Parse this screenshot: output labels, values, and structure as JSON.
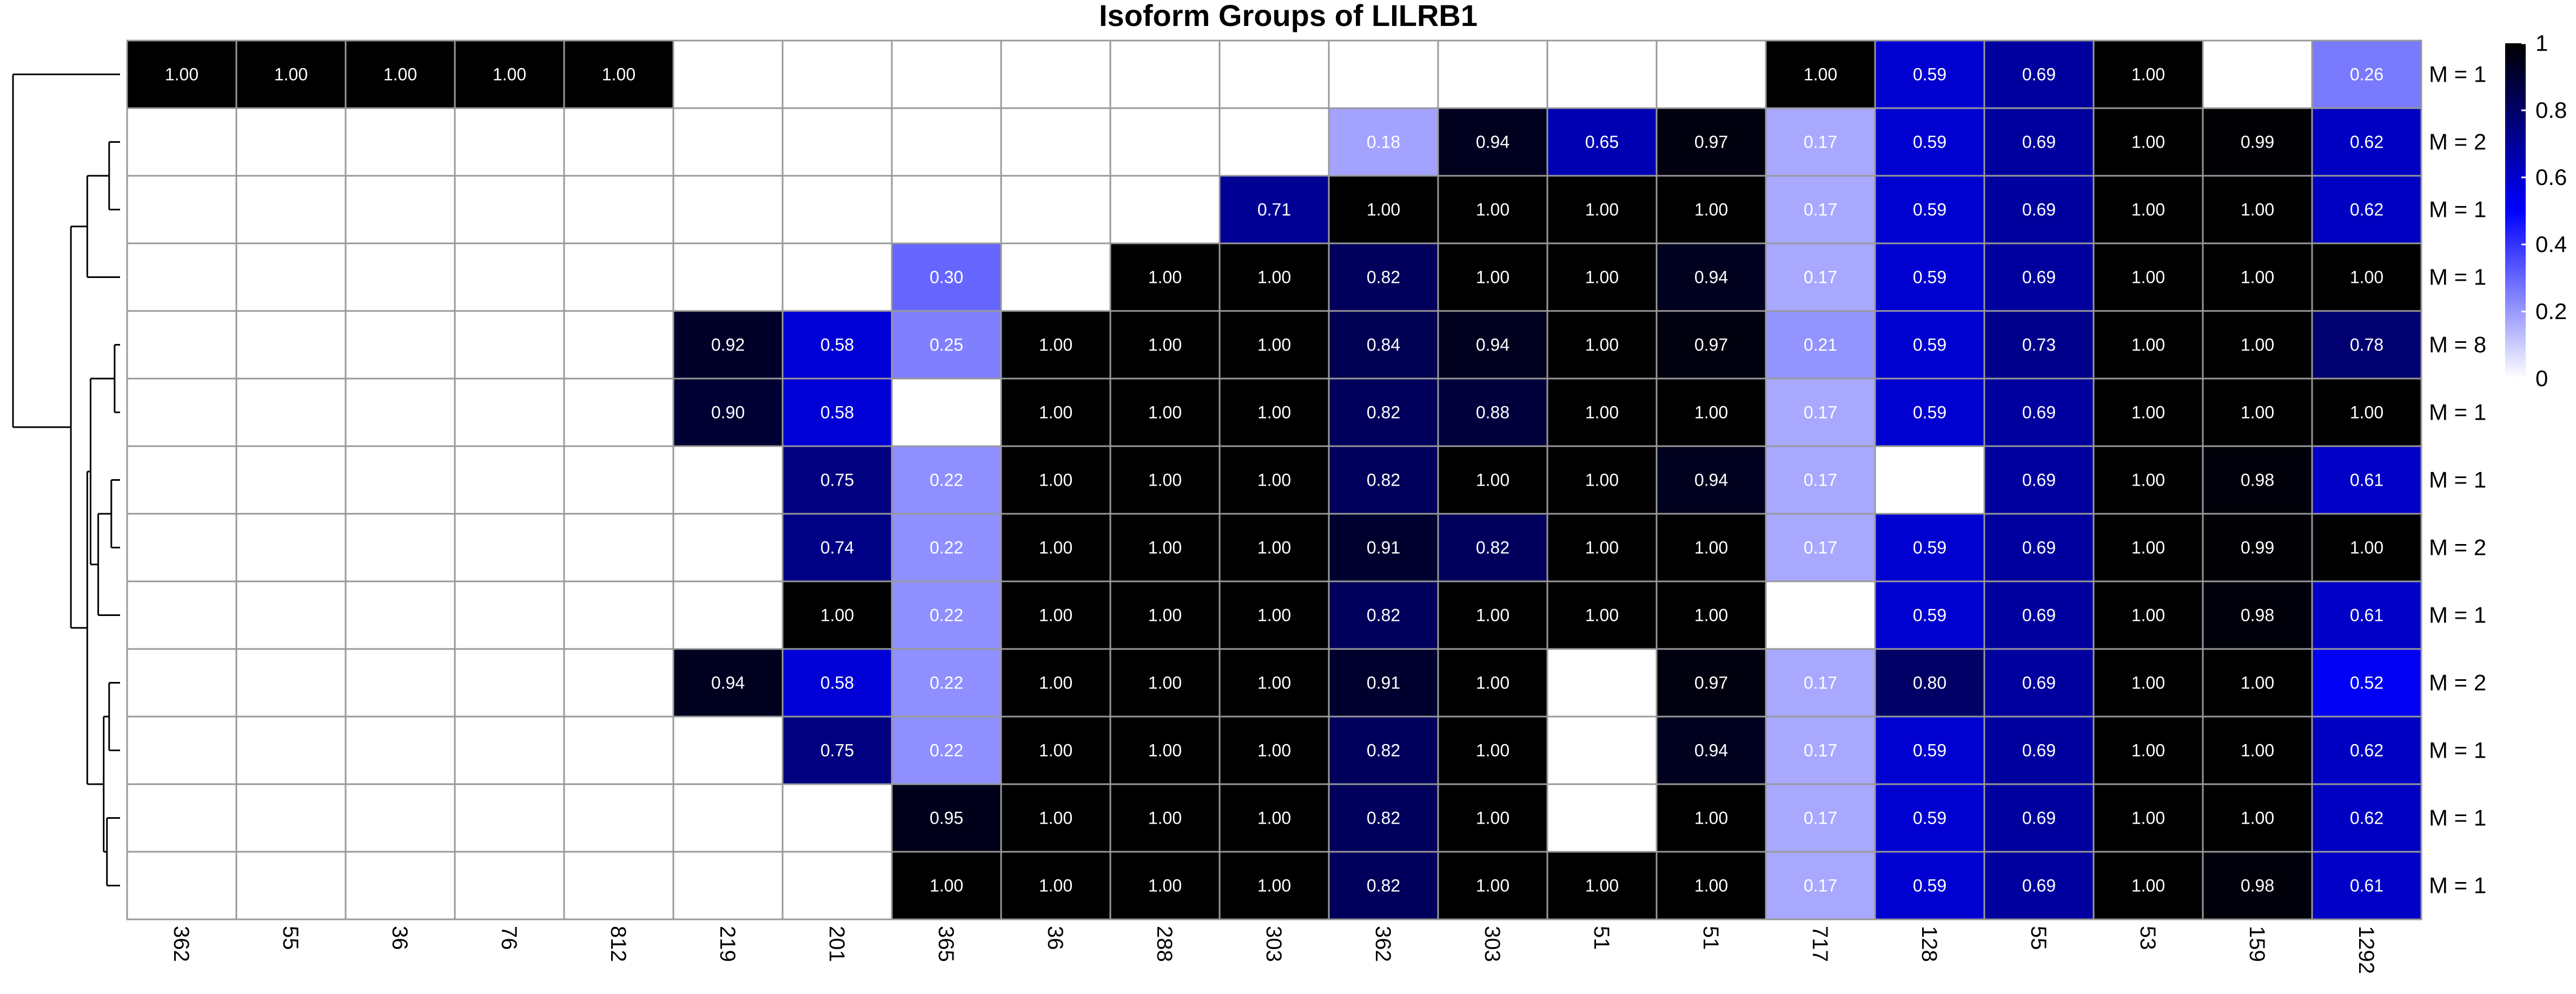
{
  "chart_data": {
    "type": "heatmap",
    "title": "Isoform Groups of LILRB1",
    "columns": [
      "362",
      "55",
      "36",
      "76",
      "812",
      "219",
      "201",
      "365",
      "36",
      "288",
      "303",
      "362",
      "303",
      "51",
      "51",
      "717",
      "128",
      "55",
      "53",
      "159",
      "1292"
    ],
    "row_labels": [
      "M = 1",
      "M = 2",
      "M = 1",
      "M = 1",
      "M = 8",
      "M = 1",
      "M = 1",
      "M = 2",
      "M = 1",
      "M = 2",
      "M = 1",
      "M = 1",
      "M = 1"
    ],
    "values": [
      [
        1.0,
        1.0,
        1.0,
        1.0,
        1.0,
        null,
        null,
        null,
        null,
        null,
        null,
        null,
        null,
        null,
        null,
        1.0,
        0.59,
        0.69,
        1.0,
        null,
        0.26
      ],
      [
        null,
        null,
        null,
        null,
        null,
        null,
        null,
        null,
        null,
        null,
        null,
        0.18,
        0.94,
        0.65,
        0.97,
        0.17,
        0.59,
        0.69,
        1.0,
        0.99,
        0.62
      ],
      [
        null,
        null,
        null,
        null,
        null,
        null,
        null,
        null,
        null,
        null,
        0.71,
        1.0,
        1.0,
        1.0,
        1.0,
        0.17,
        0.59,
        0.69,
        1.0,
        1.0,
        0.62
      ],
      [
        null,
        null,
        null,
        null,
        null,
        null,
        null,
        0.3,
        null,
        1.0,
        1.0,
        0.82,
        1.0,
        1.0,
        0.94,
        0.17,
        0.59,
        0.69,
        1.0,
        1.0,
        1.0
      ],
      [
        null,
        null,
        null,
        null,
        null,
        0.92,
        0.58,
        0.25,
        1.0,
        1.0,
        1.0,
        0.84,
        0.94,
        1.0,
        0.97,
        0.21,
        0.59,
        0.73,
        1.0,
        1.0,
        0.78
      ],
      [
        null,
        null,
        null,
        null,
        null,
        0.9,
        0.58,
        null,
        1.0,
        1.0,
        1.0,
        0.82,
        0.88,
        1.0,
        1.0,
        0.17,
        0.59,
        0.69,
        1.0,
        1.0,
        1.0
      ],
      [
        null,
        null,
        null,
        null,
        null,
        null,
        0.75,
        0.22,
        1.0,
        1.0,
        1.0,
        0.82,
        1.0,
        1.0,
        0.94,
        0.17,
        null,
        0.69,
        1.0,
        0.98,
        0.61
      ],
      [
        null,
        null,
        null,
        null,
        null,
        null,
        0.74,
        0.22,
        1.0,
        1.0,
        1.0,
        0.91,
        0.82,
        1.0,
        1.0,
        0.17,
        0.59,
        0.69,
        1.0,
        0.99,
        1.0
      ],
      [
        null,
        null,
        null,
        null,
        null,
        null,
        1.0,
        0.22,
        1.0,
        1.0,
        1.0,
        0.82,
        1.0,
        1.0,
        1.0,
        null,
        0.59,
        0.69,
        1.0,
        0.98,
        0.61
      ],
      [
        null,
        null,
        null,
        null,
        null,
        0.94,
        0.58,
        0.22,
        1.0,
        1.0,
        1.0,
        0.91,
        1.0,
        null,
        0.97,
        0.17,
        0.8,
        0.69,
        1.0,
        1.0,
        0.52
      ],
      [
        null,
        null,
        null,
        null,
        null,
        null,
        0.75,
        0.22,
        1.0,
        1.0,
        1.0,
        0.82,
        1.0,
        null,
        0.94,
        0.17,
        0.59,
        0.69,
        1.0,
        1.0,
        0.62
      ],
      [
        null,
        null,
        null,
        null,
        null,
        null,
        null,
        0.95,
        1.0,
        1.0,
        1.0,
        0.82,
        1.0,
        null,
        1.0,
        0.17,
        0.59,
        0.69,
        1.0,
        1.0,
        0.62
      ],
      [
        null,
        null,
        null,
        null,
        null,
        null,
        null,
        1.0,
        1.0,
        1.0,
        1.0,
        0.82,
        1.0,
        1.0,
        1.0,
        0.17,
        0.59,
        0.69,
        1.0,
        0.98,
        0.61
      ]
    ],
    "color_scale": {
      "min": 0,
      "max": 1,
      "low": "#ffffff",
      "mid": "#0000ff",
      "high": "#000000"
    },
    "legend": {
      "ticks": [
        0,
        0.2,
        0.4,
        0.6,
        0.8,
        1
      ],
      "tick_labels": [
        "0",
        "0.2",
        "0.4",
        "0.6",
        "0.8",
        "1"
      ]
    },
    "dendrogram": "row",
    "grid_color": "#999999"
  }
}
